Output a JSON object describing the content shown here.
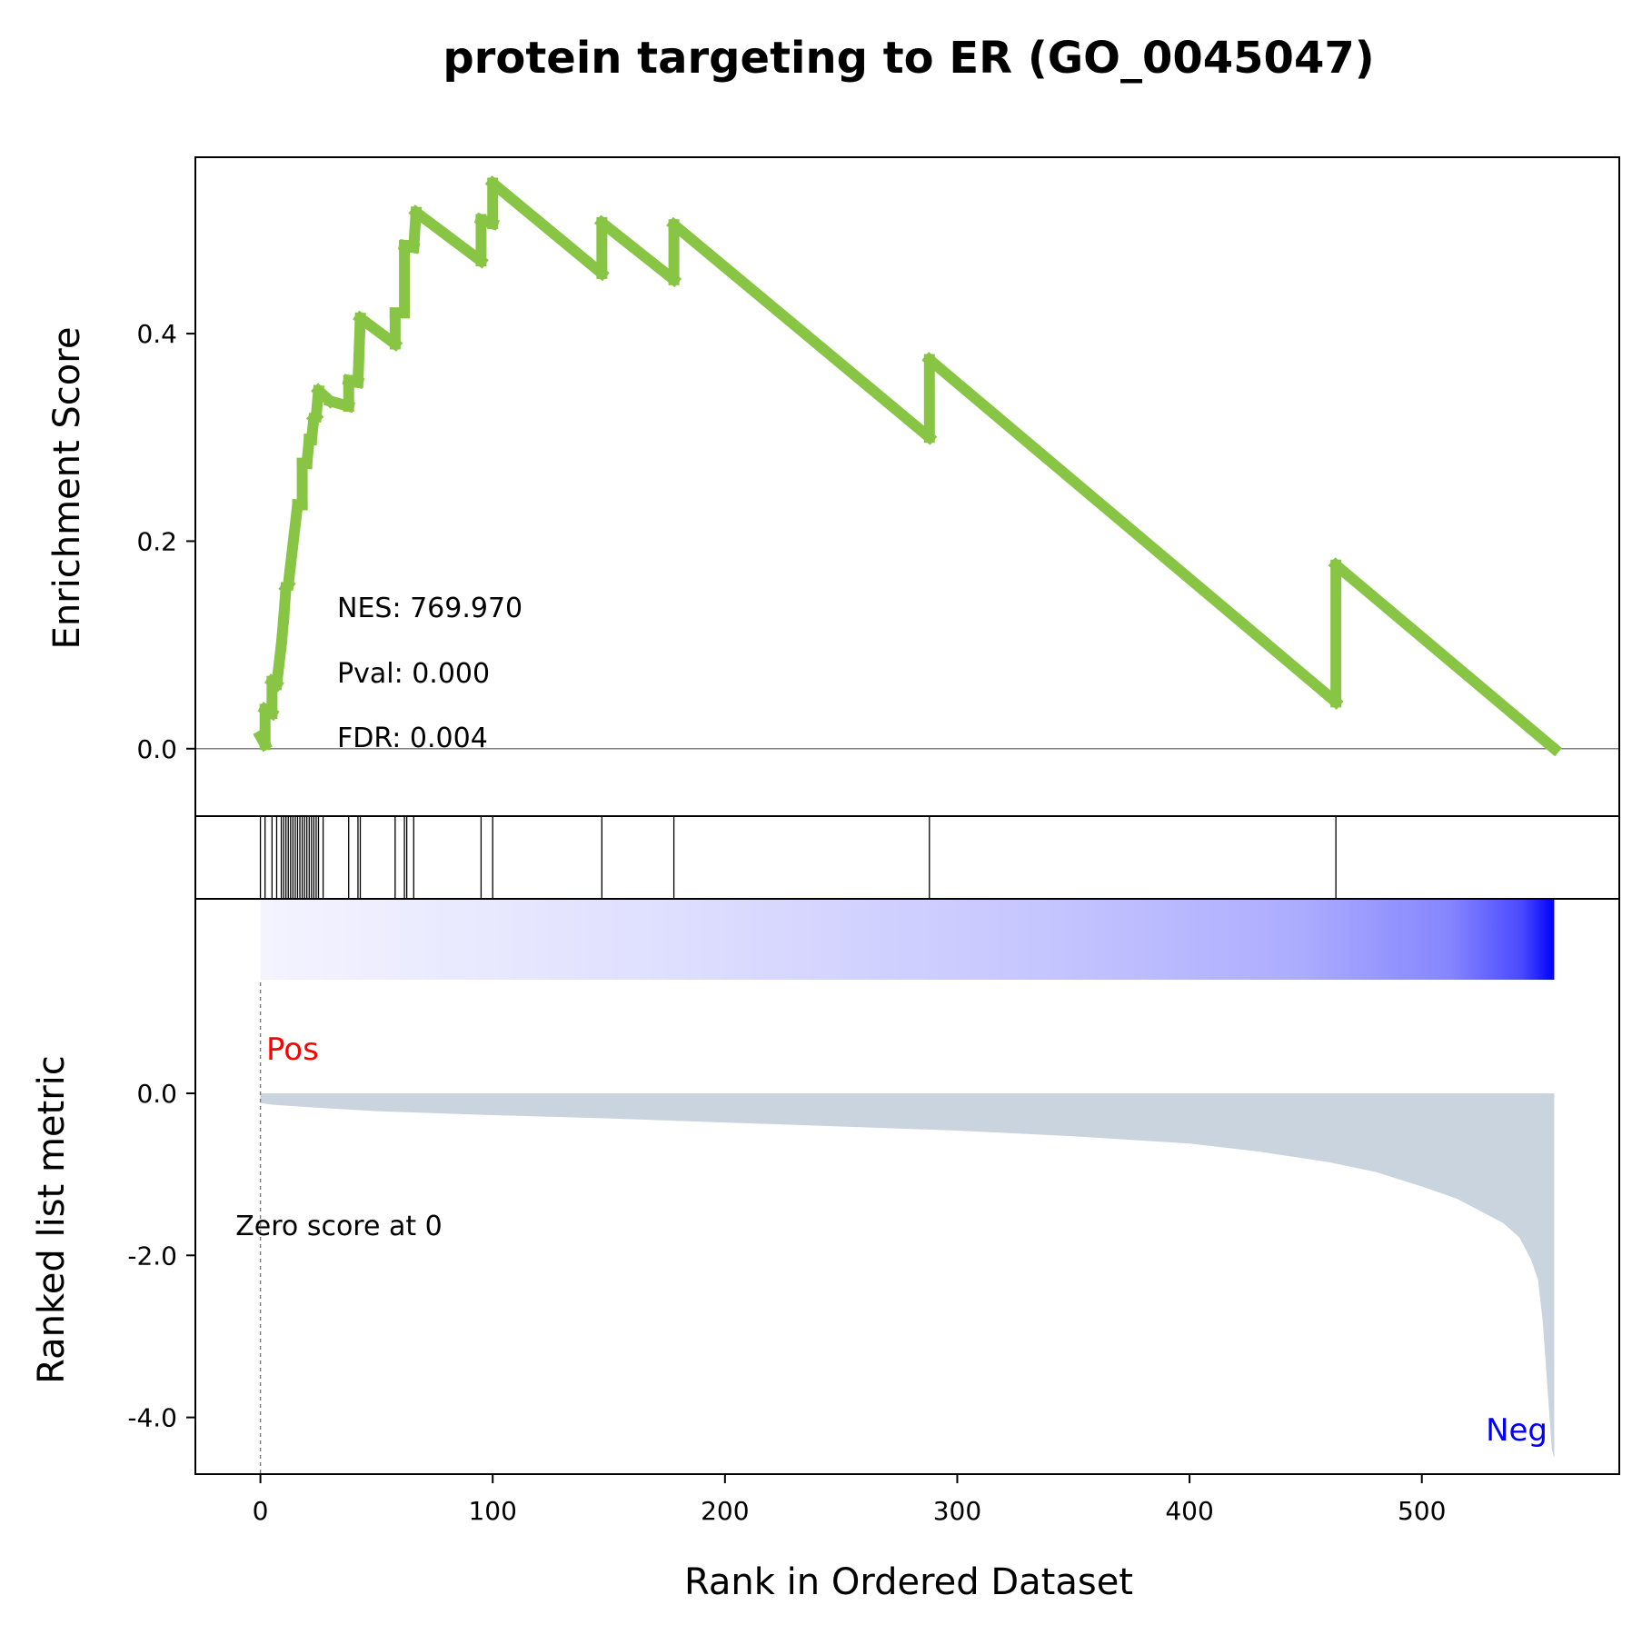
{
  "chart_data": {
    "type": "line",
    "title": "protein targeting to ER (GO_0045047)",
    "stats": [
      "NES: 769.970",
      "Pval: 0.000",
      "FDR: 0.004"
    ],
    "colors": {
      "es_line": "#88c544",
      "ranked_fill": "#c9d4de",
      "pos_label": "#ff0000",
      "neg_label": "#0000ff",
      "heat_start": "#f4f4ff",
      "heat_end": "#0000ff"
    },
    "x_axis": {
      "label": "Rank in Ordered Dataset",
      "ticks": [
        0,
        100,
        200,
        300,
        400,
        500
      ],
      "tick_labels": [
        "0",
        "100",
        "200",
        "300",
        "400",
        "500"
      ],
      "lim": [
        -28,
        585
      ]
    },
    "enrichment_score": {
      "ylabel": "Enrichment Score",
      "ylim": [
        -0.065,
        0.57
      ],
      "yticks": [
        0.0,
        0.2,
        0.4
      ],
      "ytick_labels": [
        "0.0",
        "0.2",
        "0.4"
      ],
      "zero_line": true,
      "points": [
        [
          0,
          0.012
        ],
        [
          2,
          0.004
        ],
        [
          2,
          0.038
        ],
        [
          5,
          0.034
        ],
        [
          5,
          0.065
        ],
        [
          7,
          0.062
        ],
        [
          9,
          0.1
        ],
        [
          10,
          0.125
        ],
        [
          11,
          0.155
        ],
        [
          12,
          0.158
        ],
        [
          16,
          0.235
        ],
        [
          18,
          0.235
        ],
        [
          18,
          0.275
        ],
        [
          20,
          0.275
        ],
        [
          21,
          0.298
        ],
        [
          22,
          0.298
        ],
        [
          23,
          0.318
        ],
        [
          24,
          0.32
        ],
        [
          25,
          0.345
        ],
        [
          30,
          0.335
        ],
        [
          38,
          0.33
        ],
        [
          38,
          0.355
        ],
        [
          42,
          0.353
        ],
        [
          43,
          0.415
        ],
        [
          58,
          0.39
        ],
        [
          58,
          0.42
        ],
        [
          62,
          0.42
        ],
        [
          62,
          0.485
        ],
        [
          66,
          0.483
        ],
        [
          67,
          0.517
        ],
        [
          95,
          0.47
        ],
        [
          95,
          0.51
        ],
        [
          100,
          0.506
        ],
        [
          100,
          0.545
        ],
        [
          147,
          0.458
        ],
        [
          147,
          0.507
        ],
        [
          178,
          0.452
        ],
        [
          178,
          0.505
        ],
        [
          288,
          0.3
        ],
        [
          288,
          0.375
        ],
        [
          463,
          0.045
        ],
        [
          463,
          0.177
        ],
        [
          557,
          0.0
        ]
      ]
    },
    "hits": [
      0,
      2,
      5,
      7,
      9,
      10,
      11,
      12,
      13,
      14,
      15,
      16,
      17,
      18,
      19,
      20,
      21,
      22,
      23,
      24,
      25,
      27,
      38,
      42,
      43,
      58,
      62,
      63,
      66,
      95,
      100,
      147,
      178,
      288,
      463
    ],
    "ranked_metric": {
      "ylabel": "Ranked list metric",
      "ylim": [
        -4.7,
        2.4
      ],
      "yticks": [
        0.0,
        -2.0,
        -4.0
      ],
      "ytick_labels": [
        "0.0",
        "-2.0",
        "-4.0"
      ],
      "pos_label": "Pos",
      "neg_label": "Neg",
      "zero_text": "Zero score at 0",
      "zero_rank": 0,
      "points": [
        [
          0,
          -0.12
        ],
        [
          5,
          -0.14
        ],
        [
          20,
          -0.17
        ],
        [
          50,
          -0.22
        ],
        [
          100,
          -0.27
        ],
        [
          150,
          -0.31
        ],
        [
          200,
          -0.36
        ],
        [
          250,
          -0.41
        ],
        [
          300,
          -0.46
        ],
        [
          350,
          -0.53
        ],
        [
          400,
          -0.62
        ],
        [
          430,
          -0.72
        ],
        [
          460,
          -0.85
        ],
        [
          480,
          -0.97
        ],
        [
          500,
          -1.15
        ],
        [
          515,
          -1.3
        ],
        [
          525,
          -1.45
        ],
        [
          535,
          -1.6
        ],
        [
          542,
          -1.78
        ],
        [
          547,
          -2.05
        ],
        [
          550,
          -2.3
        ],
        [
          552,
          -2.8
        ],
        [
          554,
          -3.6
        ],
        [
          556,
          -4.4
        ],
        [
          557,
          -4.5
        ]
      ]
    },
    "heatmap_range": [
      0,
      557
    ]
  }
}
